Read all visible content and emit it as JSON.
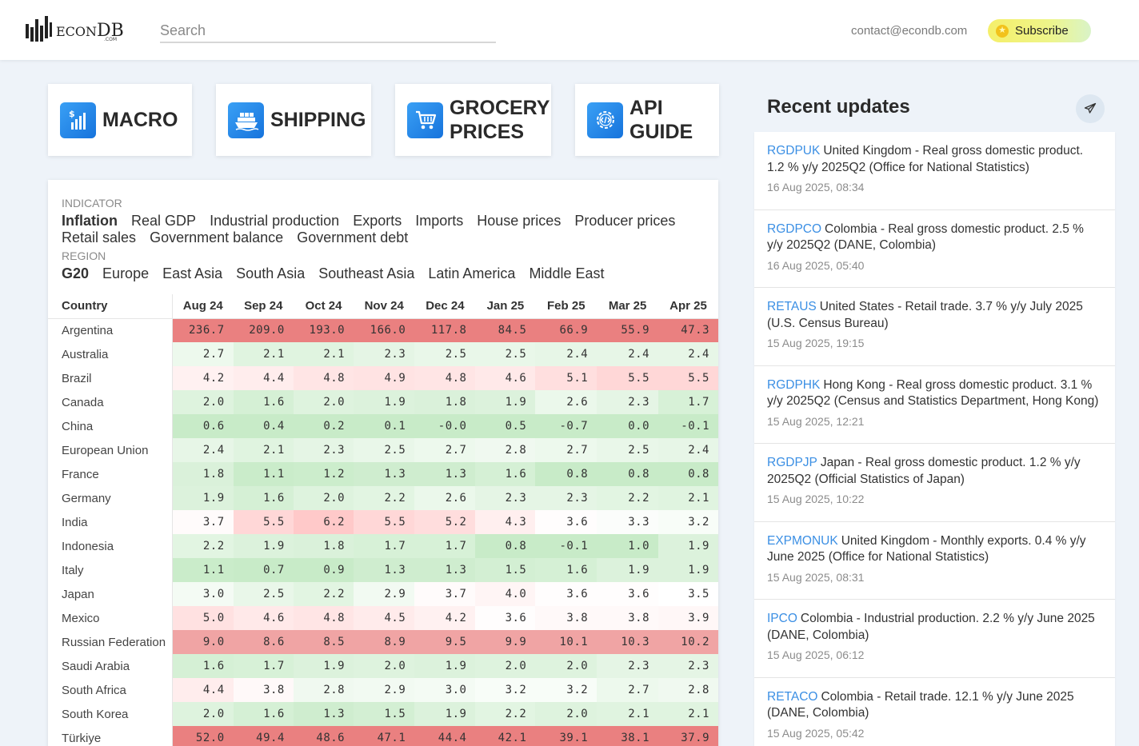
{
  "brand": {
    "name_left": "ECON",
    "name_right": "DB",
    "suffix": ".COM"
  },
  "search": {
    "placeholder": "Search"
  },
  "contact": "contact@econdb.com",
  "subscribe_label": "Subscribe",
  "nav_cards": [
    {
      "label": "MACRO",
      "icon": "dollar-chart-icon"
    },
    {
      "label": "SHIPPING",
      "icon": "ship-icon"
    },
    {
      "label_line1": "GROCERY",
      "label_line2": "PRICES",
      "icon": "shopping-cart-icon"
    },
    {
      "label_line1": "API",
      "label_line2": "GUIDE",
      "icon": "code-gear-icon"
    }
  ],
  "indicator": {
    "label": "INDICATOR",
    "options": [
      "Inflation",
      "Real GDP",
      "Industrial production",
      "Exports",
      "Imports",
      "House prices",
      "Producer prices",
      "Retail sales",
      "Government balance",
      "Government debt"
    ],
    "active": "Inflation"
  },
  "region": {
    "label": "REGION",
    "options": [
      "G20",
      "Europe",
      "East Asia",
      "South Asia",
      "Southeast Asia",
      "Latin America",
      "Middle East"
    ],
    "active": "G20"
  },
  "table": {
    "country_header": "Country",
    "columns": [
      "Aug 24",
      "Sep 24",
      "Oct 24",
      "Nov 24",
      "Dec 24",
      "Jan 25",
      "Feb 25",
      "Mar 25",
      "Apr 25"
    ],
    "rows": [
      {
        "country": "Argentina",
        "values": [
          "236.7",
          "209.0",
          "193.0",
          "166.0",
          "117.8",
          "84.5",
          "66.9",
          "55.9",
          "47.3"
        ]
      },
      {
        "country": "Australia",
        "values": [
          "2.7",
          "2.1",
          "2.1",
          "2.3",
          "2.5",
          "2.5",
          "2.4",
          "2.4",
          "2.4"
        ]
      },
      {
        "country": "Brazil",
        "values": [
          "4.2",
          "4.4",
          "4.8",
          "4.9",
          "4.8",
          "4.6",
          "5.1",
          "5.5",
          "5.5"
        ]
      },
      {
        "country": "Canada",
        "values": [
          "2.0",
          "1.6",
          "2.0",
          "1.9",
          "1.8",
          "1.9",
          "2.6",
          "2.3",
          "1.7"
        ]
      },
      {
        "country": "China",
        "values": [
          "0.6",
          "0.4",
          "0.2",
          "0.1",
          "-0.0",
          "0.5",
          "-0.7",
          "0.0",
          "-0.1"
        ]
      },
      {
        "country": "European Union",
        "values": [
          "2.4",
          "2.1",
          "2.3",
          "2.5",
          "2.7",
          "2.8",
          "2.7",
          "2.5",
          "2.4"
        ]
      },
      {
        "country": "France",
        "values": [
          "1.8",
          "1.1",
          "1.2",
          "1.3",
          "1.3",
          "1.6",
          "0.8",
          "0.8",
          "0.8"
        ]
      },
      {
        "country": "Germany",
        "values": [
          "1.9",
          "1.6",
          "2.0",
          "2.2",
          "2.6",
          "2.3",
          "2.3",
          "2.2",
          "2.1"
        ]
      },
      {
        "country": "India",
        "values": [
          "3.7",
          "5.5",
          "6.2",
          "5.5",
          "5.2",
          "4.3",
          "3.6",
          "3.3",
          "3.2"
        ]
      },
      {
        "country": "Indonesia",
        "values": [
          "2.2",
          "1.9",
          "1.8",
          "1.7",
          "1.7",
          "0.8",
          "-0.1",
          "1.0",
          "1.9"
        ]
      },
      {
        "country": "Italy",
        "values": [
          "1.1",
          "0.7",
          "0.9",
          "1.3",
          "1.3",
          "1.5",
          "1.6",
          "1.9",
          "1.9"
        ]
      },
      {
        "country": "Japan",
        "values": [
          "3.0",
          "2.5",
          "2.2",
          "2.9",
          "3.7",
          "4.0",
          "3.6",
          "3.6",
          "3.5"
        ]
      },
      {
        "country": "Mexico",
        "values": [
          "5.0",
          "4.6",
          "4.8",
          "4.5",
          "4.2",
          "3.6",
          "3.8",
          "3.8",
          "3.9"
        ]
      },
      {
        "country": "Russian Federation",
        "values": [
          "9.0",
          "8.6",
          "8.5",
          "8.9",
          "9.5",
          "9.9",
          "10.1",
          "10.3",
          "10.2"
        ]
      },
      {
        "country": "Saudi Arabia",
        "values": [
          "1.6",
          "1.7",
          "1.9",
          "2.0",
          "1.9",
          "2.0",
          "2.0",
          "2.3",
          "2.3"
        ]
      },
      {
        "country": "South Africa",
        "values": [
          "4.4",
          "3.8",
          "2.8",
          "2.9",
          "3.0",
          "3.2",
          "3.2",
          "2.7",
          "2.8"
        ]
      },
      {
        "country": "South Korea",
        "values": [
          "2.0",
          "1.6",
          "1.3",
          "1.5",
          "1.9",
          "2.2",
          "2.0",
          "2.1",
          "2.1"
        ]
      },
      {
        "country": "Türkiye",
        "values": [
          "52.0",
          "49.4",
          "48.6",
          "47.1",
          "44.4",
          "42.1",
          "39.1",
          "38.1",
          "37.9"
        ]
      }
    ]
  },
  "recent_updates": {
    "title": "Recent updates",
    "items": [
      {
        "code": "RGDPUK",
        "text": "United Kingdom - Real gross domestic product. 1.2 % y/y 2025Q2 (Office for National Statistics)",
        "date": "16 Aug 2025, 08:34"
      },
      {
        "code": "RGDPCO",
        "text": "Colombia - Real gross domestic product. 2.5 % y/y 2025Q2 (DANE, Colombia)",
        "date": "16 Aug 2025, 05:40"
      },
      {
        "code": "RETAUS",
        "text": "United States - Retail trade. 3.7 % y/y July 2025 (U.S. Census Bureau)",
        "date": "15 Aug 2025, 19:15"
      },
      {
        "code": "RGDPHK",
        "text": "Hong Kong - Real gross domestic product. 3.1 % y/y 2025Q2 (Census and Statistics Department, Hong Kong)",
        "date": "15 Aug 2025, 12:21"
      },
      {
        "code": "RGDPJP",
        "text": "Japan - Real gross domestic product. 1.2 % y/y 2025Q2 (Official Statistics of Japan)",
        "date": "15 Aug 2025, 10:22"
      },
      {
        "code": "EXPMONUK",
        "text": "United Kingdom - Monthly exports. 0.4 % y/y June 2025 (Office for National Statistics)",
        "date": "15 Aug 2025, 08:31"
      },
      {
        "code": "IPCO",
        "text": "Colombia - Industrial production. 2.2 % y/y June 2025 (DANE, Colombia)",
        "date": "15 Aug 2025, 06:12"
      },
      {
        "code": "RETACO",
        "text": "Colombia - Retail trade. 12.1 % y/y June 2025 (DANE, Colombia)",
        "date": "15 Aug 2025, 05:42"
      }
    ]
  },
  "colors": {
    "accent": "#3b8fe4",
    "hot": "#ee7c7c",
    "cool": "#c9efc9"
  }
}
